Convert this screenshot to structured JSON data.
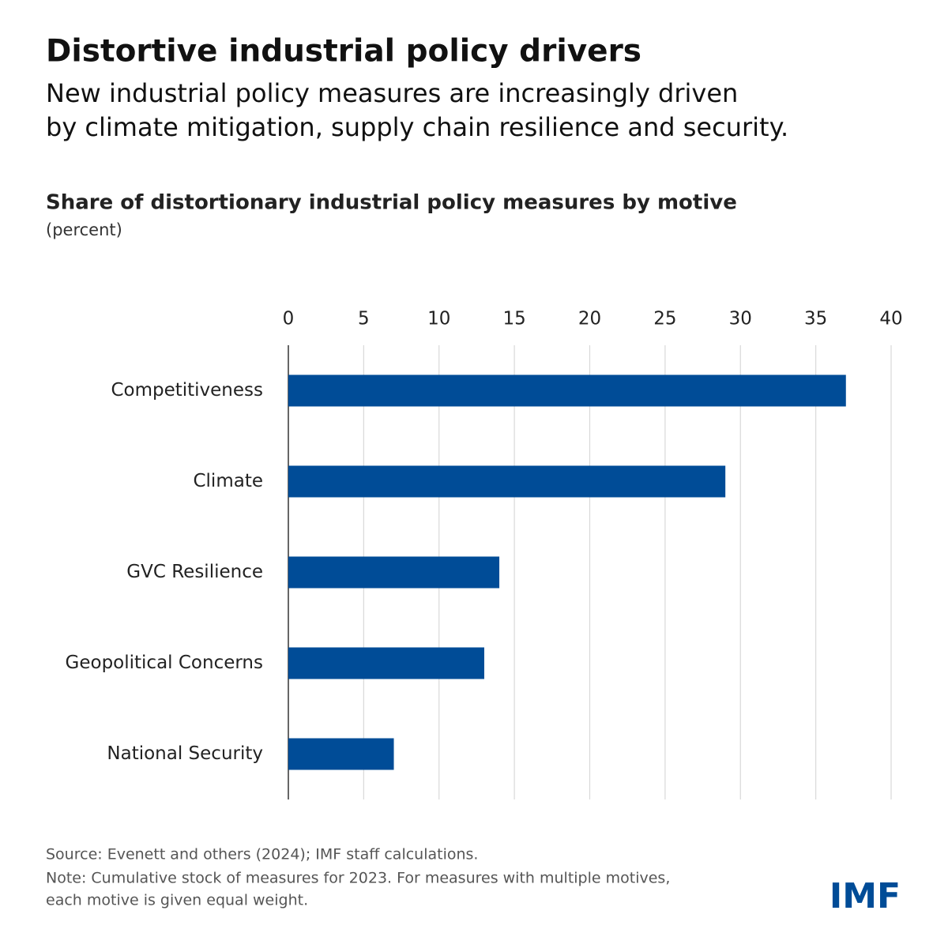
{
  "chart_data": {
    "type": "hbar",
    "title": "Distortive industrial policy drivers",
    "subtitle": [
      "New industrial policy measures are increasingly driven",
      "by climate mitigation, supply chain resilience and security."
    ],
    "chart_title": "Share of distortionary industrial policy measures by motive",
    "unit": "(percent)",
    "categories": [
      "Competitiveness",
      "Climate",
      "GVC Resilience",
      "Geopolitical Concerns",
      "National Security"
    ],
    "values": [
      37,
      29,
      14,
      13,
      7
    ],
    "color": "#004c97",
    "xlim": [
      0,
      40
    ],
    "xticks": [
      0,
      5,
      10,
      15,
      20,
      25,
      30,
      35,
      40
    ],
    "grid": true,
    "source": "Source: Evenett and others (2024); IMF staff calculations.",
    "note": [
      "Note: Cumulative stock of measures for 2023. For measures with multiple motives,",
      "each motive is given equal weight."
    ],
    "logo": "IMF"
  }
}
